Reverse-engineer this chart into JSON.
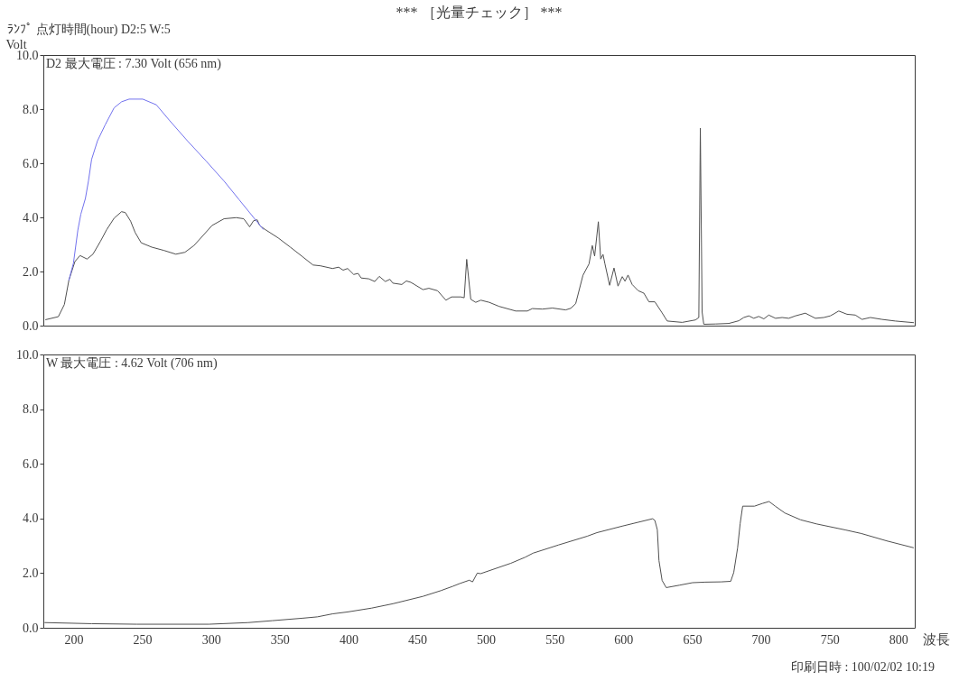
{
  "chart_data": [
    {
      "type": "line",
      "title": "*** ［光量チェック］ ***",
      "annotations": [
        "ﾗﾝﾌﾟ 点灯時間(hour) D2:5 W:5",
        "D2  最大電圧 : 7.30 Volt (656 nm)"
      ],
      "ylabel": "Volt",
      "xlim": [
        178,
        812
      ],
      "ylim": [
        0,
        10
      ],
      "yticks": [
        {
          "value": 0,
          "label": "0.0"
        },
        {
          "value": 2,
          "label": "2.0"
        },
        {
          "value": 4,
          "label": "4.0"
        },
        {
          "value": 6,
          "label": "6.0"
        },
        {
          "value": 8,
          "label": "8.0"
        },
        {
          "value": 10,
          "label": "10.0"
        }
      ],
      "tick_labels": "y",
      "series": [
        {
          "color": "#505050",
          "x": [
            179.7,
            188.9,
            193.3,
            196.6,
            201.0,
            204.7,
            209.8,
            214.1,
            219.6,
            224.0,
            229.5,
            234.9,
            237.6,
            241.5,
            244.8,
            249.2,
            256.9,
            265.6,
            274.4,
            281.0,
            287.6,
            294.2,
            300.7,
            309.5,
            318.3,
            323.8,
            328.1,
            331.0,
            333.6,
            335.4,
            339.1,
            348.9,
            357.7,
            366.5,
            374.2,
            379.6,
            388.4,
            392.8,
            396.1,
            399.4,
            403.8,
            407.0,
            409.2,
            414.7,
            419.1,
            422.4,
            426.8,
            430.1,
            432.3,
            438.8,
            442.1,
            445.4,
            454.2,
            458.5,
            464.8,
            470.9,
            475.0,
            481.7,
            484.2,
            486.0,
            489.0,
            492.6,
            496.3,
            502.4,
            509.6,
            521.7,
            530.2,
            533.8,
            541.1,
            548.4,
            558.0,
            561.7,
            565.3,
            570.6,
            575.0,
            577.4,
            579.1,
            581.8,
            583.5,
            585.2,
            586.6,
            590.0,
            593.2,
            596.1,
            599.2,
            601.2,
            603.4,
            606.4,
            610.8,
            614.9,
            618.6,
            622.9,
            628.2,
            631.9,
            642.8,
            652.5,
            654.9,
            656.0,
            657.3,
            658.5,
            667.0,
            676.7,
            684.0,
            687.6,
            691.3,
            694.9,
            698.5,
            702.2,
            705.8,
            710.7,
            715.5,
            720.3,
            725.2,
            732.4,
            739.7,
            745.8,
            750.6,
            756.7,
            762.7,
            768.8,
            773.6,
            779.7,
            788.2,
            797.8,
            811.1
          ],
          "values": [
            0.22,
            0.33,
            0.78,
            1.68,
            2.37,
            2.59,
            2.46,
            2.64,
            3.12,
            3.54,
            3.97,
            4.21,
            4.18,
            3.86,
            3.44,
            3.06,
            2.9,
            2.78,
            2.64,
            2.71,
            2.96,
            3.33,
            3.7,
            3.95,
            3.99,
            3.95,
            3.65,
            3.88,
            3.91,
            3.7,
            3.56,
            3.24,
            2.9,
            2.55,
            2.24,
            2.21,
            2.11,
            2.16,
            2.05,
            2.11,
            1.89,
            1.93,
            1.76,
            1.73,
            1.63,
            1.82,
            1.63,
            1.71,
            1.57,
            1.52,
            1.65,
            1.6,
            1.33,
            1.38,
            1.29,
            0.94,
            1.06,
            1.06,
            1.03,
            2.45,
            0.97,
            0.86,
            0.94,
            0.86,
            0.71,
            0.54,
            0.54,
            0.63,
            0.61,
            0.65,
            0.58,
            0.64,
            0.81,
            1.86,
            2.28,
            2.96,
            2.57,
            3.84,
            2.46,
            2.63,
            2.28,
            1.49,
            2.13,
            1.46,
            1.81,
            1.64,
            1.87,
            1.52,
            1.29,
            1.2,
            0.88,
            0.88,
            0.47,
            0.17,
            0.12,
            0.21,
            0.3,
            7.3,
            0.5,
            0.05,
            0.06,
            0.08,
            0.18,
            0.3,
            0.36,
            0.27,
            0.34,
            0.25,
            0.39,
            0.27,
            0.3,
            0.27,
            0.36,
            0.46,
            0.27,
            0.3,
            0.36,
            0.54,
            0.42,
            0.39,
            0.23,
            0.3,
            0.23,
            0.17,
            0.11
          ]
        },
        {
          "color": "#7272ee",
          "x": [
            196.6,
            199.9,
            203.1,
            205.3,
            208.6,
            210.8,
            213.1,
            217.4,
            222.9,
            229.5,
            234.9,
            240.4,
            250.3,
            260.2,
            270.0,
            282.8,
            296.3,
            309.5,
            320.5,
            332.5,
            338.0
          ],
          "values": [
            1.68,
            2.31,
            3.53,
            4.12,
            4.7,
            5.34,
            6.14,
            6.83,
            7.41,
            8.05,
            8.27,
            8.37,
            8.37,
            8.16,
            7.57,
            6.83,
            6.09,
            5.34,
            4.65,
            3.9,
            3.56
          ]
        }
      ]
    },
    {
      "type": "line",
      "annotations": [
        "W  最大電圧 : 4.62 Volt (706 nm)",
        "印刷日時 : 100/02/02 10:19"
      ],
      "xlabel": "波長",
      "xlim": [
        178,
        812
      ],
      "ylim": [
        0,
        10
      ],
      "xticks": [
        200,
        250,
        300,
        350,
        400,
        450,
        500,
        550,
        600,
        650,
        700,
        750,
        800
      ],
      "yticks": [
        {
          "value": 0,
          "label": "0.0"
        },
        {
          "value": 2,
          "label": "2.0"
        },
        {
          "value": 4,
          "label": "4.0"
        },
        {
          "value": 6,
          "label": "6.0"
        },
        {
          "value": 8,
          "label": "8.0"
        },
        {
          "value": 10,
          "label": "10.0"
        }
      ],
      "series": [
        {
          "color": "#505050",
          "x": [
            179.1,
            213.1,
            245.9,
            298.5,
            327.0,
            344.5,
            366.5,
            377.4,
            388.4,
            399.4,
            416.9,
            432.3,
            454.2,
            467.3,
            476.0,
            481.0,
            487.9,
            490.3,
            493.7,
            496.1,
            506.5,
            518.1,
            528.5,
            534.3,
            552.8,
            573.7,
            580.7,
            599.2,
            621.3,
            622.9,
            624.7,
            625.9,
            628.2,
            631.2,
            641.0,
            650.3,
            659.5,
            671.1,
            678.1,
            680.3,
            683.1,
            685.0,
            686.8,
            695.4,
            701.2,
            706.0,
            710.5,
            717.5,
            729.0,
            740.6,
            761.5,
            773.1,
            791.6,
            811.0
          ],
          "values": [
            0.19,
            0.15,
            0.13,
            0.13,
            0.19,
            0.26,
            0.35,
            0.4,
            0.51,
            0.58,
            0.72,
            0.88,
            1.15,
            1.36,
            1.52,
            1.62,
            1.74,
            1.68,
            2.0,
            1.98,
            2.16,
            2.36,
            2.58,
            2.73,
            3.03,
            3.35,
            3.48,
            3.72,
            3.99,
            3.93,
            3.59,
            2.46,
            1.73,
            1.47,
            1.56,
            1.65,
            1.67,
            1.68,
            1.7,
            2.02,
            2.92,
            3.82,
            4.45,
            4.45,
            4.55,
            4.62,
            4.45,
            4.2,
            3.95,
            3.8,
            3.58,
            3.45,
            3.18,
            2.93
          ]
        }
      ]
    }
  ]
}
